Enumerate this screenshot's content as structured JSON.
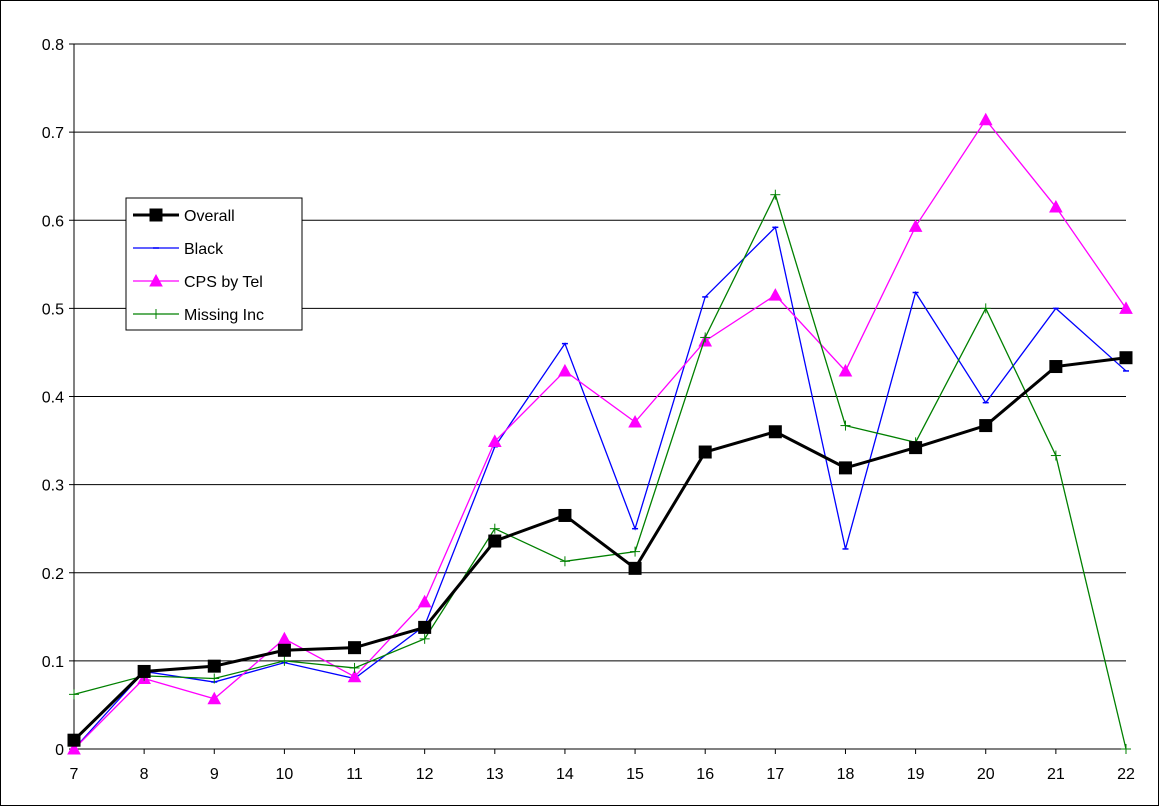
{
  "chart_data": {
    "type": "line",
    "title": "",
    "xlabel": "",
    "ylabel": "",
    "categories": [
      "7",
      "8",
      "9",
      "10",
      "11",
      "12",
      "13",
      "14",
      "15",
      "16",
      "17",
      "18",
      "19",
      "20",
      "21",
      "22"
    ],
    "ylim": [
      0,
      0.8
    ],
    "yticks": [
      "0",
      "0.1",
      "0.2",
      "0.3",
      "0.4",
      "0.5",
      "0.6",
      "0.7",
      "0.8"
    ],
    "grid": true,
    "legend_position": "left",
    "series": [
      {
        "name": "Overall",
        "color": "#000000",
        "marker": "square",
        "values": [
          0.01,
          0.088,
          0.094,
          0.112,
          0.115,
          0.138,
          0.236,
          0.265,
          0.205,
          0.337,
          0.36,
          0.319,
          0.342,
          0.367,
          0.434,
          0.444
        ]
      },
      {
        "name": "Black",
        "color": "#0000FF",
        "marker": "dash",
        "values": [
          0.0,
          0.088,
          0.076,
          0.098,
          0.08,
          0.14,
          0.343,
          0.46,
          0.25,
          0.513,
          0.592,
          0.227,
          0.518,
          0.393,
          0.5,
          0.429
        ]
      },
      {
        "name": "CPS by Tel",
        "color": "#FF00FF",
        "marker": "triangle",
        "values": [
          0.0,
          0.08,
          0.057,
          0.125,
          0.082,
          0.167,
          0.349,
          0.429,
          0.371,
          0.463,
          0.515,
          0.429,
          0.593,
          0.714,
          0.615,
          0.5
        ]
      },
      {
        "name": "Missing Inc",
        "color": "#008000",
        "marker": "plus",
        "values": [
          0.062,
          0.083,
          0.08,
          0.1,
          0.092,
          0.125,
          0.25,
          0.213,
          0.224,
          0.467,
          0.629,
          0.367,
          0.348,
          0.5,
          0.333,
          0.0
        ]
      }
    ]
  }
}
